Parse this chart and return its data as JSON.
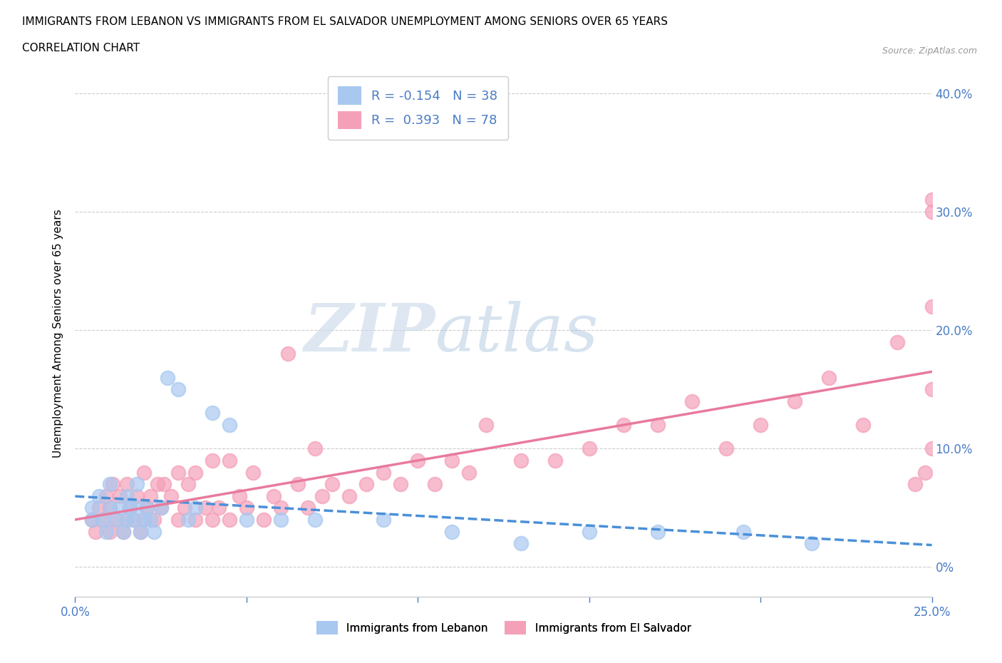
{
  "title_line1": "IMMIGRANTS FROM LEBANON VS IMMIGRANTS FROM EL SALVADOR UNEMPLOYMENT AMONG SENIORS OVER 65 YEARS",
  "title_line2": "CORRELATION CHART",
  "source_text": "Source: ZipAtlas.com",
  "ylabel": "Unemployment Among Seniors over 65 years",
  "xlim": [
    0.0,
    0.25
  ],
  "ylim": [
    -0.025,
    0.42
  ],
  "xtick_positions": [
    0.0,
    0.05,
    0.1,
    0.15,
    0.2,
    0.25
  ],
  "xtick_labels": [
    "0.0%",
    "",
    "",
    "",
    "",
    "25.0%"
  ],
  "ytick_positions": [
    0.0,
    0.1,
    0.2,
    0.3,
    0.4
  ],
  "ytick_labels_right": [
    "0%",
    "10.0%",
    "20.0%",
    "30.0%",
    "40.0%"
  ],
  "lebanon_color": "#a8c8f0",
  "el_salvador_color": "#f4a0b8",
  "leb_line_color": "#4a90d9",
  "sal_line_color": "#e87a9e",
  "text_color": "#4a7cc7",
  "lebanon_R": -0.154,
  "lebanon_N": 38,
  "el_salvador_R": 0.393,
  "el_salvador_N": 78,
  "watermark": "ZIPatlas",
  "legend_label_lebanon": "Immigrants from Lebanon",
  "legend_label_el_salvador": "Immigrants from El Salvador",
  "lebanon_x": [
    0.005,
    0.005,
    0.007,
    0.008,
    0.009,
    0.01,
    0.01,
    0.012,
    0.013,
    0.014,
    0.015,
    0.015,
    0.016,
    0.017,
    0.018,
    0.018,
    0.019,
    0.02,
    0.021,
    0.022,
    0.023,
    0.025,
    0.027,
    0.03,
    0.033,
    0.035,
    0.04,
    0.045,
    0.05,
    0.06,
    0.07,
    0.09,
    0.11,
    0.13,
    0.15,
    0.17,
    0.195,
    0.215
  ],
  "lebanon_y": [
    0.05,
    0.04,
    0.06,
    0.04,
    0.03,
    0.05,
    0.07,
    0.04,
    0.05,
    0.03,
    0.04,
    0.06,
    0.05,
    0.04,
    0.05,
    0.07,
    0.03,
    0.04,
    0.05,
    0.04,
    0.03,
    0.05,
    0.16,
    0.15,
    0.04,
    0.05,
    0.13,
    0.12,
    0.04,
    0.04,
    0.04,
    0.04,
    0.03,
    0.02,
    0.03,
    0.03,
    0.03,
    0.02
  ],
  "el_salvador_x": [
    0.005,
    0.006,
    0.007,
    0.008,
    0.009,
    0.01,
    0.01,
    0.011,
    0.012,
    0.013,
    0.014,
    0.015,
    0.015,
    0.016,
    0.017,
    0.018,
    0.019,
    0.02,
    0.02,
    0.021,
    0.022,
    0.023,
    0.024,
    0.025,
    0.026,
    0.028,
    0.03,
    0.03,
    0.032,
    0.033,
    0.035,
    0.035,
    0.038,
    0.04,
    0.04,
    0.042,
    0.045,
    0.045,
    0.048,
    0.05,
    0.052,
    0.055,
    0.058,
    0.06,
    0.062,
    0.065,
    0.068,
    0.07,
    0.072,
    0.075,
    0.08,
    0.085,
    0.09,
    0.095,
    0.1,
    0.105,
    0.11,
    0.115,
    0.12,
    0.13,
    0.14,
    0.15,
    0.16,
    0.17,
    0.18,
    0.19,
    0.2,
    0.21,
    0.22,
    0.23,
    0.24,
    0.245,
    0.248,
    0.25,
    0.25,
    0.25,
    0.25,
    0.25
  ],
  "el_salvador_y": [
    0.04,
    0.03,
    0.05,
    0.04,
    0.06,
    0.03,
    0.05,
    0.07,
    0.04,
    0.06,
    0.03,
    0.04,
    0.07,
    0.05,
    0.04,
    0.06,
    0.03,
    0.04,
    0.08,
    0.05,
    0.06,
    0.04,
    0.07,
    0.05,
    0.07,
    0.06,
    0.04,
    0.08,
    0.05,
    0.07,
    0.04,
    0.08,
    0.05,
    0.04,
    0.09,
    0.05,
    0.04,
    0.09,
    0.06,
    0.05,
    0.08,
    0.04,
    0.06,
    0.05,
    0.18,
    0.07,
    0.05,
    0.1,
    0.06,
    0.07,
    0.06,
    0.07,
    0.08,
    0.07,
    0.09,
    0.07,
    0.09,
    0.08,
    0.12,
    0.09,
    0.09,
    0.1,
    0.12,
    0.12,
    0.14,
    0.1,
    0.12,
    0.14,
    0.16,
    0.12,
    0.19,
    0.07,
    0.08,
    0.1,
    0.15,
    0.22,
    0.3,
    0.31
  ]
}
